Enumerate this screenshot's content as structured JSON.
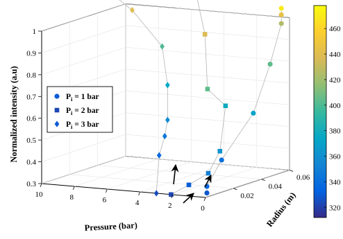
{
  "chart_data": {
    "type": "scatter3d",
    "xlabel": "Pressure (bar)",
    "ylabel": "Radius (m)",
    "zlabel": "Normalized intensity (a.u)",
    "x_ticks": [
      "10",
      "8",
      "6",
      "4",
      "2",
      "0"
    ],
    "y_ticks": [
      "0.02",
      "0.04",
      "0.06"
    ],
    "z_ticks": [
      "0.3",
      "0.4",
      "0.5",
      "0.6",
      "0.7",
      "0.8",
      "0.9",
      "1"
    ],
    "xlim": [
      0,
      10
    ],
    "ylim": [
      0,
      0.06
    ],
    "zlim": [
      0.3,
      1
    ],
    "grid": true,
    "legend_position": "left",
    "colorbar": {
      "min": 312,
      "max": 478,
      "ticks": [
        "320",
        "340",
        "360",
        "380",
        "400",
        "420",
        "440",
        "460"
      ],
      "tick_values": [
        320,
        340,
        360,
        380,
        400,
        420,
        440,
        460
      ],
      "colormap": "parula"
    },
    "series": [
      {
        "name": "Pi = 1 bar",
        "marker": "circle",
        "points": [
          {
            "x": 0.6,
            "y": 0.008,
            "z": 0.3,
            "c": 328
          },
          {
            "x": 0.6,
            "y": 0.008,
            "z": 0.33,
            "c": 335
          },
          {
            "x": 0.9,
            "y": 0.022,
            "z": 0.42,
            "c": 340
          },
          {
            "x": 0.5,
            "y": 0.04,
            "z": 0.6,
            "c": 372
          },
          {
            "x": 0.5,
            "y": 0.052,
            "z": 0.8,
            "c": 404
          },
          {
            "x": 0.5,
            "y": 0.06,
            "z": 0.97,
            "c": 425
          },
          {
            "x": 0.5,
            "y": 0.06,
            "z": 1.01,
            "c": 445
          },
          {
            "x": 0.5,
            "y": 0.06,
            "z": 1.04,
            "c": 470
          }
        ]
      },
      {
        "name": "Pi = 2 bar",
        "marker": "square",
        "points": [
          {
            "x": 2.1,
            "y": 0.0,
            "z": 0.3,
            "c": 322
          },
          {
            "x": 1.7,
            "y": 0.008,
            "z": 0.33,
            "c": 330
          },
          {
            "x": 1.2,
            "y": 0.016,
            "z": 0.37,
            "c": 350
          },
          {
            "x": 1.0,
            "y": 0.022,
            "z": 0.46,
            "c": 362
          },
          {
            "x": 1.0,
            "y": 0.026,
            "z": 0.66,
            "c": 378
          },
          {
            "x": 2.1,
            "y": 0.026,
            "z": 0.73,
            "c": 404
          },
          {
            "x": 2.6,
            "y": 0.03,
            "z": 0.97,
            "c": 438
          },
          {
            "x": 3.5,
            "y": 0.033,
            "z": 1.18,
            "c": 470
          }
        ]
      },
      {
        "name": "Pi = 3 bar",
        "marker": "diamond",
        "points": [
          {
            "x": 3.0,
            "y": 0.0,
            "z": 0.3,
            "c": 324
          },
          {
            "x": 3.0,
            "y": 0.002,
            "z": 0.47,
            "c": 336
          },
          {
            "x": 3.0,
            "y": 0.006,
            "z": 0.55,
            "c": 345
          },
          {
            "x": 3.0,
            "y": 0.008,
            "z": 0.62,
            "c": 358
          },
          {
            "x": 3.0,
            "y": 0.008,
            "z": 0.78,
            "c": 374
          },
          {
            "x": 3.5,
            "y": 0.01,
            "z": 0.95,
            "c": 400
          },
          {
            "x": 5.5,
            "y": 0.012,
            "z": 1.1,
            "c": 440
          },
          {
            "x": 8.0,
            "y": 0.014,
            "z": 1.22,
            "c": 466
          }
        ]
      }
    ],
    "annotations": [
      "arrow-1bar",
      "arrow-2bar",
      "arrow-3bar"
    ]
  },
  "legend": {
    "items": [
      {
        "prefix": "P",
        "sub": "i",
        "suffix": " = 1 bar"
      },
      {
        "prefix": "P",
        "sub": "i",
        "suffix": " = 2 bar"
      },
      {
        "prefix": "P",
        "sub": "i",
        "suffix": " = 3 bar"
      }
    ]
  }
}
